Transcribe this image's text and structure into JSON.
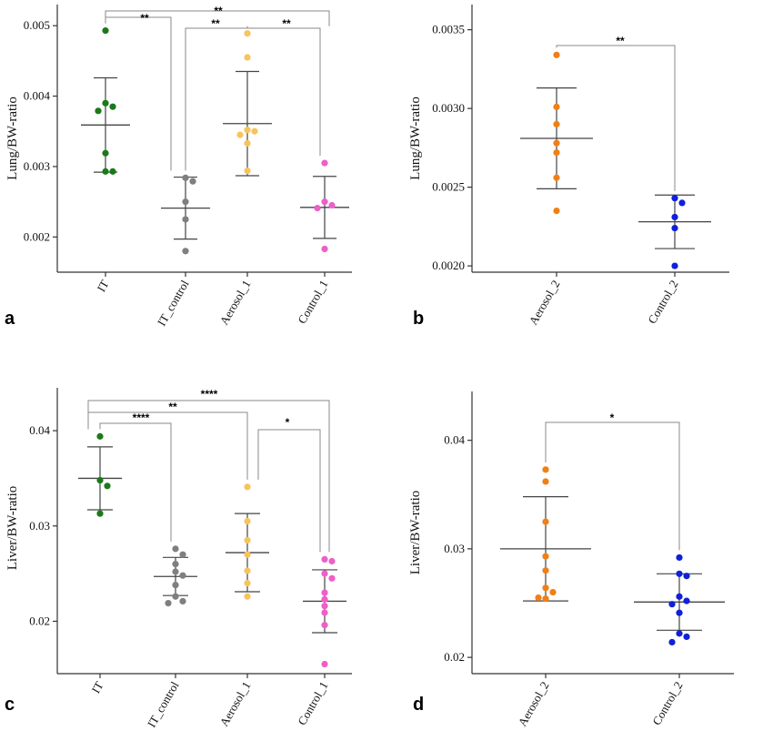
{
  "chart_data": [
    {
      "panel": "a",
      "type": "scatter",
      "ylabel": "Lung/BW-ratio",
      "ylim": [
        0.0015,
        0.0053
      ],
      "yticks": [
        0.002,
        0.003,
        0.004,
        0.005
      ],
      "ytick_labels": [
        "0.002",
        "0.003",
        "0.004",
        "0.005"
      ],
      "categories": [
        "IT",
        "IT_control",
        "Aerosol_1",
        "Control_1"
      ],
      "colors": [
        "#1a7a1a",
        "#7f7f7f",
        "#f7c45c",
        "#ee5fc8"
      ],
      "points": [
        [
          0.00493,
          0.00385,
          0.0039,
          0.00379,
          0.00319,
          0.00293,
          0.00293
        ],
        [
          0.00284,
          0.00279,
          0.0025,
          0.00225,
          0.0018
        ],
        [
          0.00489,
          0.00455,
          0.0035,
          0.00352,
          0.00345,
          0.00333,
          0.00294
        ],
        [
          0.00305,
          0.0025,
          0.00245,
          0.00241,
          0.00183
        ]
      ],
      "mean": [
        0.00359,
        0.00241,
        0.00361,
        0.00242
      ],
      "sd": [
        0.00067,
        0.00044,
        0.00074,
        0.00044
      ],
      "significance": [
        {
          "from": 0,
          "to": 1,
          "label": "**"
        },
        {
          "from": 0,
          "to": 2,
          "label": "**"
        },
        {
          "from": 1,
          "to": 2,
          "label": "**"
        },
        {
          "from": 2,
          "to": 3,
          "label": "**"
        }
      ]
    },
    {
      "panel": "b",
      "type": "scatter",
      "ylabel": "Lung/BW-ratio",
      "ylim": [
        0.00196,
        0.00366
      ],
      "yticks": [
        0.002,
        0.0025,
        0.003,
        0.0035
      ],
      "ytick_labels": [
        "0.0020",
        "0.0025",
        "0.0030",
        "0.0035"
      ],
      "categories": [
        "Aerosol_2",
        "Control_2"
      ],
      "colors": [
        "#f07f14",
        "#1020d8"
      ],
      "points": [
        [
          0.00334,
          0.00301,
          0.0029,
          0.00278,
          0.00272,
          0.00256,
          0.00235
        ],
        [
          0.00243,
          0.0024,
          0.00231,
          0.00224,
          0.002
        ]
      ],
      "mean": [
        0.00281,
        0.00228
      ],
      "sd": [
        0.00032,
        0.00017
      ],
      "significance": [
        {
          "from": 0,
          "to": 1,
          "label": "**"
        }
      ]
    },
    {
      "panel": "c",
      "type": "scatter",
      "ylabel": "Liver/BW-ratio",
      "ylim": [
        0.0145,
        0.0445
      ],
      "yticks": [
        0.02,
        0.03,
        0.04
      ],
      "ytick_labels": [
        "0.02",
        "0.03",
        "0.04"
      ],
      "categories": [
        "IT",
        "IT_control",
        "Aerosol_1",
        "Control_1"
      ],
      "colors": [
        "#1a7a1a",
        "#7f7f7f",
        "#f7c45c",
        "#ee5fc8"
      ],
      "points": [
        [
          0.0394,
          0.0348,
          0.0342,
          0.0313
        ],
        [
          0.0276,
          0.027,
          0.026,
          0.0252,
          0.0248,
          0.0238,
          0.0226,
          0.0221,
          0.0219
        ],
        [
          0.0341,
          0.0305,
          0.0285,
          0.027,
          0.0253,
          0.024,
          0.0226
        ],
        [
          0.0265,
          0.0263,
          0.025,
          0.0245,
          0.023,
          0.0223,
          0.0216,
          0.0209,
          0.0196,
          0.0155
        ]
      ],
      "mean": [
        0.035,
        0.0247,
        0.0272,
        0.0221
      ],
      "sd": [
        0.0033,
        0.002,
        0.0041,
        0.0033
      ],
      "significance": [
        {
          "from": 0,
          "to": 1,
          "label": "****"
        },
        {
          "from": 0,
          "to": 2,
          "label": "**"
        },
        {
          "from": 0,
          "to": 3,
          "label": "****"
        },
        {
          "from": 2,
          "to": 3,
          "label": "*"
        }
      ]
    },
    {
      "panel": "d",
      "type": "scatter",
      "ylabel": "Liver/BW-ratio",
      "ylim": [
        0.0185,
        0.0445
      ],
      "yticks": [
        0.02,
        0.03,
        0.04
      ],
      "ytick_labels": [
        "0.02",
        "0.03",
        "0.04"
      ],
      "categories": [
        "Aerosol_2",
        "Control_2"
      ],
      "colors": [
        "#f07f14",
        "#1020d8"
      ],
      "points": [
        [
          0.0373,
          0.0362,
          0.0325,
          0.0293,
          0.028,
          0.0264,
          0.026,
          0.0255,
          0.0254
        ],
        [
          0.0292,
          0.0277,
          0.0275,
          0.0256,
          0.0252,
          0.0249,
          0.0241,
          0.0222,
          0.0219,
          0.0214
        ]
      ],
      "mean": [
        0.03,
        0.0251
      ],
      "sd": [
        0.0048,
        0.0026
      ],
      "significance": [
        {
          "from": 0,
          "to": 1,
          "label": "*"
        }
      ]
    }
  ]
}
